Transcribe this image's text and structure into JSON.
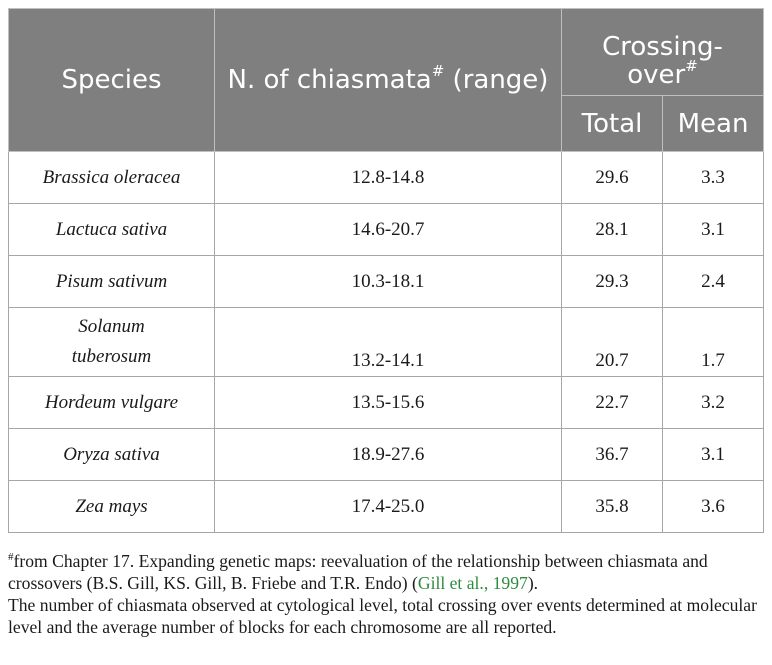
{
  "header": {
    "species": "Species",
    "chiasmata": "N. of chiasmata",
    "chiasmata_mark": "#",
    "chiasmata_range": " (range)",
    "crossing_line1": "Crossing-",
    "crossing_line2": "over",
    "crossing_mark": "#",
    "total": "Total",
    "mean": "Mean"
  },
  "rows": [
    {
      "species": "Brassica oleracea",
      "range": "12.8-14.8",
      "total": "29.6",
      "mean": "3.3"
    },
    {
      "species": "Lactuca sativa",
      "range": "14.6-20.7",
      "total": "28.1",
      "mean": "3.1"
    },
    {
      "species": "Pisum sativum",
      "range": "10.3-18.1",
      "total": "29.3",
      "mean": "2.4"
    },
    {
      "species_line1": "Solanum",
      "species_line2": "tuberosum",
      "range": "13.2-14.1",
      "total": "20.7",
      "mean": "1.7"
    },
    {
      "species": "Hordeum vulgare",
      "range": "13.5-15.6",
      "total": "22.7",
      "mean": "3.2"
    },
    {
      "species": "Oryza sativa",
      "range": "18.9-27.6",
      "total": "36.7",
      "mean": "3.1"
    },
    {
      "species": "Zea mays",
      "range": "17.4-25.0",
      "total": "35.8",
      "mean": "3.6"
    }
  ],
  "footnote": {
    "mark": "#",
    "text_before": "from Chapter 17. Expanding genetic maps: reevaluation of the relationship between chiasmata and crossovers (B.S. Gill, KS. Gill, B. Friebe and T.R. Endo) (",
    "citation": "Gill et al., 1997",
    "text_after": ").",
    "note2": "The number of chiasmata observed at cytological level, total crossing over events determined at molecular level and the average number of blocks for each chromosome are all reported."
  },
  "colors": {
    "header_bg": "#7f7f7f",
    "header_text": "#ffffff",
    "citation": "#2e8b3c"
  }
}
